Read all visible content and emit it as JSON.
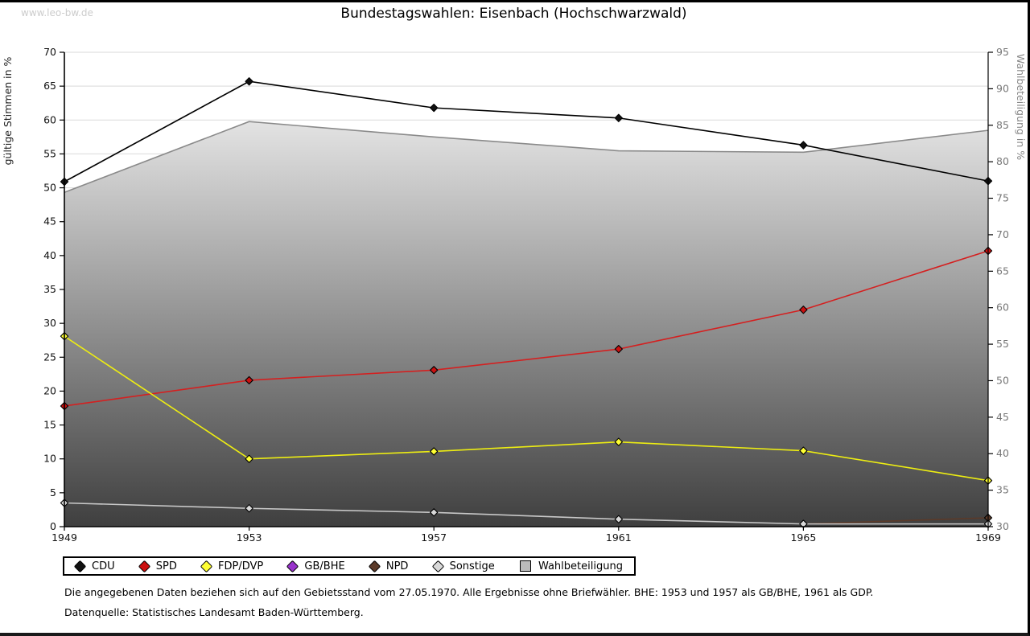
{
  "page": {
    "watermark": "www.leo-bw.de",
    "title": "Bundestagswahlen: Eisenbach (Hochschwarzwald)",
    "footnote1": "Die angegebenen Daten beziehen sich auf den Gebietsstand vom 27.05.1970. Alle Ergebnisse ohne Briefwähler. BHE: 1953 und 1957 als GB/BHE, 1961 als GDP.",
    "footnote2": "Datenquelle: Statistisches Landesamt Baden-Württemberg."
  },
  "chart_data": {
    "type": "line",
    "x": [
      1949,
      1953,
      1957,
      1961,
      1965,
      1969
    ],
    "left_axis": {
      "label": "gültige Stimmen in %",
      "min": 0,
      "max": 70,
      "step": 5
    },
    "right_axis": {
      "label": "Wahlbeteiligung in %",
      "min": 30,
      "max": 95,
      "step": 5
    },
    "grid": true,
    "legend_position": "bottom",
    "colors": {
      "gridline": "#d9d9d9",
      "axis": "#000000",
      "right_tick_text": "#777777",
      "area_top": "#ffffff",
      "area_bottom": "#3f3f3f"
    },
    "series": [
      {
        "name": "CDU",
        "axis": "left",
        "color": "#000000",
        "marker": "diamond",
        "marker_fill": "#111111",
        "values": [
          50.9,
          65.7,
          61.8,
          60.3,
          56.3,
          51.0
        ]
      },
      {
        "name": "SPD",
        "axis": "left",
        "color": "#d42020",
        "marker": "diamond",
        "marker_fill": "#cc1010",
        "values": [
          17.8,
          21.6,
          23.1,
          26.2,
          32.0,
          40.7
        ]
      },
      {
        "name": "FDP/DVP",
        "axis": "left",
        "color": "#eded12",
        "marker": "diamond",
        "marker_fill": "#ffff33",
        "values": [
          28.1,
          10.0,
          11.1,
          12.5,
          11.2,
          6.8
        ]
      },
      {
        "name": "GB/BHE",
        "axis": "left",
        "color": "#9933cc",
        "marker": "diamond",
        "marker_fill": "#9933cc",
        "values": [
          null,
          null,
          null,
          null,
          null,
          null
        ]
      },
      {
        "name": "NPD",
        "axis": "left",
        "color": "#5b3a29",
        "marker": "diamond",
        "marker_fill": "#5b3a29",
        "values": [
          null,
          null,
          null,
          null,
          0.4,
          1.3
        ]
      },
      {
        "name": "Sonstige",
        "axis": "left",
        "color": "#c8c8c8",
        "marker": "diamond",
        "marker_fill": "#d9d9d9",
        "values": [
          3.5,
          2.7,
          2.1,
          1.1,
          0.4,
          0.4
        ]
      },
      {
        "name": "Wahlbeteiligung",
        "axis": "right",
        "color": "#8a8a8a",
        "marker": "square",
        "marker_fill": "#bbbbbb",
        "area": true,
        "values": [
          75.8,
          85.5,
          83.4,
          81.5,
          81.3,
          84.3
        ]
      }
    ]
  }
}
